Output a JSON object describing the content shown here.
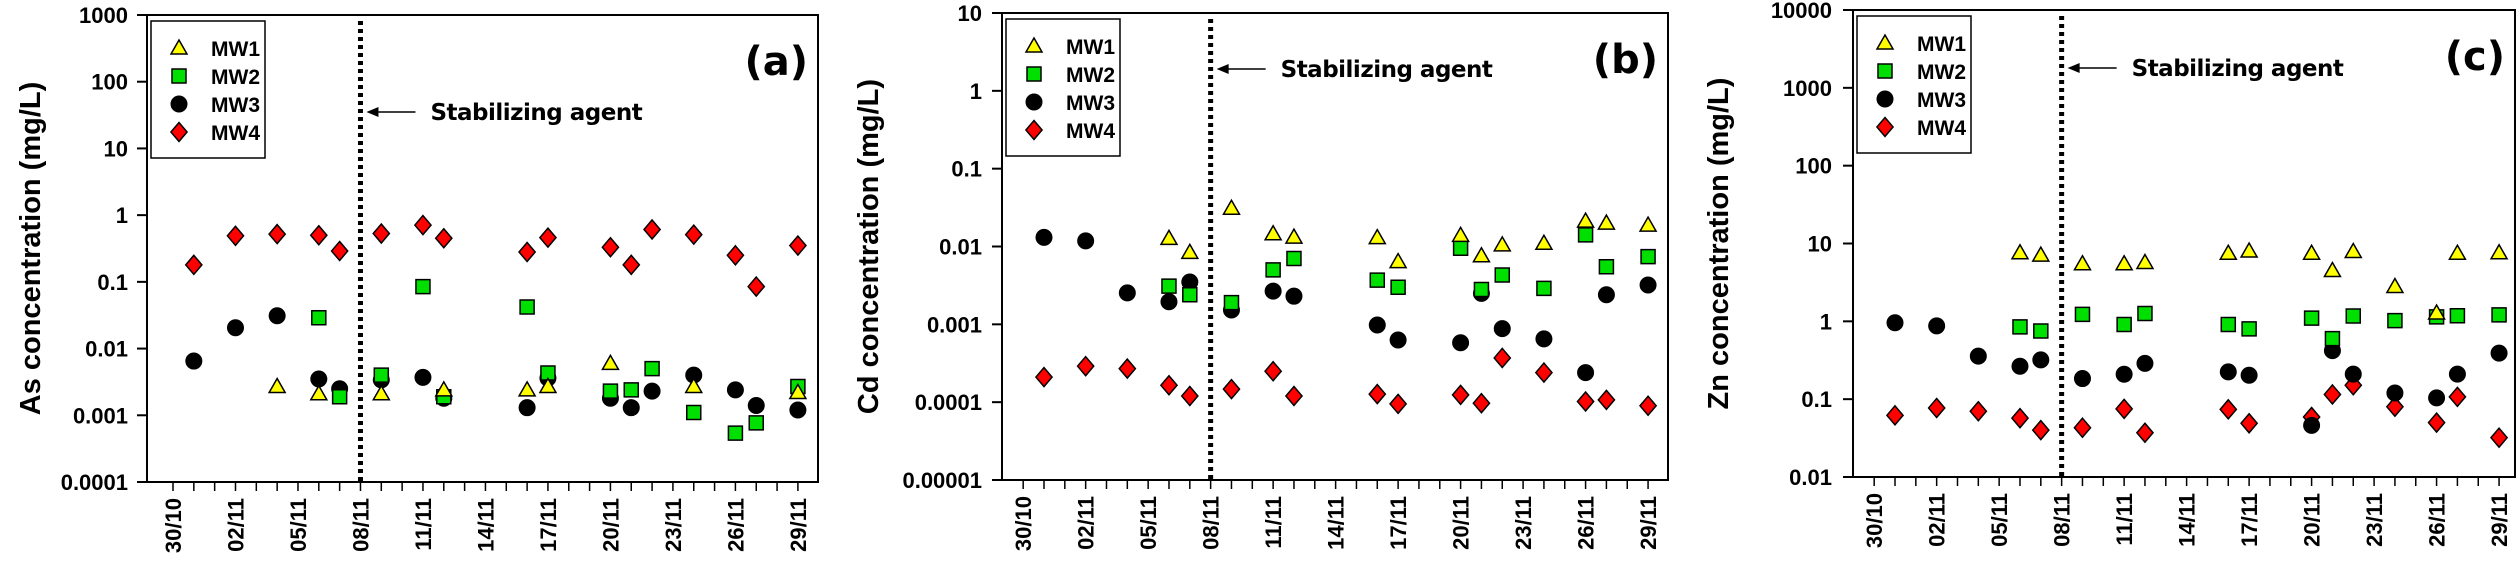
{
  "chart_data": [
    {
      "type": "scatter",
      "panel_label": "(a)",
      "ylabel": "As concentration (mg/L)",
      "xlabel": "",
      "yscale": "log",
      "ylim": [
        0.0001,
        1000
      ],
      "yticks": [
        "0.0001",
        "0.001",
        "0.01",
        "0.1",
        "1",
        "10",
        "100",
        "1000"
      ],
      "xticks": [
        "30/10",
        "02/11",
        "05/11",
        "08/11",
        "11/11",
        "14/11",
        "17/11",
        "20/11",
        "23/11",
        "26/11",
        "29/11"
      ],
      "annotation": "Stabilizing agent",
      "marker_line_date": "08/11",
      "legend_position": "top-left",
      "series": [
        {
          "name": "MW1",
          "x": [
            "04/11",
            "06/11",
            "09/11",
            "12/11",
            "16/11",
            "17/11",
            "20/11",
            "24/11",
            "29/11"
          ],
          "values": [
            0.0027,
            0.0021,
            0.0021,
            0.0024,
            0.0024,
            0.0027,
            0.006,
            0.0027,
            0.0022
          ]
        },
        {
          "name": "MW2",
          "x": [
            "06/11",
            "07/11",
            "09/11",
            "11/11",
            "12/11",
            "16/11",
            "17/11",
            "20/11",
            "21/11",
            "22/11",
            "24/11",
            "26/11",
            "27/11",
            "29/11"
          ],
          "values": [
            0.029,
            0.0019,
            0.004,
            0.085,
            0.0019,
            0.042,
            0.0043,
            0.0023,
            0.0024,
            0.005,
            0.0011,
            0.00054,
            0.00077,
            0.0027
          ]
        },
        {
          "name": "MW3",
          "x": [
            "31/10",
            "02/11",
            "04/11",
            "06/11",
            "07/11",
            "09/11",
            "11/11",
            "12/11",
            "16/11",
            "17/11",
            "20/11",
            "21/11",
            "22/11",
            "24/11",
            "26/11",
            "27/11",
            "29/11"
          ],
          "values": [
            0.0065,
            0.0205,
            0.031,
            0.0035,
            0.0025,
            0.0034,
            0.0037,
            0.0018,
            0.0013,
            0.0036,
            0.0018,
            0.0013,
            0.0023,
            0.004,
            0.0024,
            0.0014,
            0.0012
          ]
        },
        {
          "name": "MW4",
          "x": [
            "31/10",
            "02/11",
            "04/11",
            "06/11",
            "07/11",
            "09/11",
            "11/11",
            "12/11",
            "16/11",
            "17/11",
            "20/11",
            "21/11",
            "22/11",
            "24/11",
            "26/11",
            "27/11",
            "29/11"
          ],
          "values": [
            0.18,
            0.49,
            0.52,
            0.5,
            0.29,
            0.53,
            0.71,
            0.45,
            0.28,
            0.46,
            0.33,
            0.18,
            0.61,
            0.51,
            0.25,
            0.085,
            0.35
          ]
        }
      ]
    },
    {
      "type": "scatter",
      "panel_label": "(b)",
      "ylabel": "Cd concentration (mg/L)",
      "xlabel": "",
      "yscale": "log",
      "ylim": [
        1e-05,
        10
      ],
      "yticks": [
        "0.00001",
        "0.0001",
        "0.001",
        "0.01",
        "0.1",
        "1",
        "10"
      ],
      "xticks": [
        "30/10",
        "02/11",
        "05/11",
        "08/11",
        "11/11",
        "14/11",
        "17/11",
        "20/11",
        "23/11",
        "26/11",
        "29/11"
      ],
      "annotation": "Stabilizing agent",
      "marker_line_date": "08/11",
      "legend_position": "top-left",
      "series": [
        {
          "name": "MW1",
          "x": [
            "06/11",
            "07/11",
            "09/11",
            "11/11",
            "12/11",
            "16/11",
            "17/11",
            "20/11",
            "21/11",
            "22/11",
            "24/11",
            "26/11",
            "27/11",
            "29/11"
          ],
          "values": [
            0.0127,
            0.0084,
            0.031,
            0.0146,
            0.0132,
            0.013,
            0.0064,
            0.0139,
            0.0076,
            0.0105,
            0.011,
            0.0212,
            0.02,
            0.0188
          ]
        },
        {
          "name": "MW2",
          "x": [
            "06/11",
            "07/11",
            "09/11",
            "11/11",
            "12/11",
            "16/11",
            "17/11",
            "20/11",
            "21/11",
            "22/11",
            "24/11",
            "26/11",
            "27/11",
            "29/11"
          ],
          "values": [
            0.0031,
            0.0024,
            0.0019,
            0.005,
            0.007,
            0.0037,
            0.003,
            0.0095,
            0.0028,
            0.0043,
            0.0029,
            0.0141,
            0.0055,
            0.0074
          ]
        },
        {
          "name": "MW3",
          "x": [
            "31/10",
            "02/11",
            "04/11",
            "06/11",
            "07/11",
            "09/11",
            "11/11",
            "12/11",
            "16/11",
            "17/11",
            "20/11",
            "21/11",
            "22/11",
            "24/11",
            "26/11",
            "27/11",
            "29/11"
          ],
          "values": [
            0.0131,
            0.0118,
            0.00254,
            0.00195,
            0.0035,
            0.00153,
            0.00267,
            0.0023,
            0.00098,
            0.00063,
            0.00058,
            0.0025,
            0.00088,
            0.00065,
            0.00024,
            0.0024,
            0.0032
          ]
        },
        {
          "name": "MW4",
          "x": [
            "31/10",
            "02/11",
            "04/11",
            "06/11",
            "07/11",
            "09/11",
            "11/11",
            "12/11",
            "16/11",
            "17/11",
            "20/11",
            "21/11",
            "22/11",
            "24/11",
            "26/11",
            "27/11",
            "29/11"
          ],
          "values": [
            0.00021,
            0.00029,
            0.00027,
            0.000165,
            0.00012,
            0.000147,
            0.00025,
            0.00012,
            0.000127,
            9.5e-05,
            0.000124,
            9.7e-05,
            0.00037,
            0.00024,
            0.000102,
            0.000107,
            9e-05
          ]
        }
      ]
    },
    {
      "type": "scatter",
      "panel_label": "(c)",
      "ylabel": "Zn concentration (mg/L)",
      "xlabel": "",
      "yscale": "log",
      "ylim": [
        0.01,
        10000
      ],
      "yticks": [
        "0.01",
        "0.1",
        "1",
        "10",
        "100",
        "1000",
        "10000"
      ],
      "xticks": [
        "30/10",
        "02/11",
        "05/11",
        "08/11",
        "11/11",
        "14/11",
        "17/11",
        "20/11",
        "23/11",
        "26/11",
        "29/11"
      ],
      "annotation": "Stabilizing agent",
      "marker_line_date": "08/11",
      "legend_position": "top-left",
      "series": [
        {
          "name": "MW1",
          "x": [
            "06/11",
            "07/11",
            "09/11",
            "11/11",
            "12/11",
            "16/11",
            "17/11",
            "20/11",
            "21/11",
            "22/11",
            "24/11",
            "26/11",
            "27/11",
            "29/11"
          ],
          "values": [
            7.6,
            7.1,
            5.5,
            5.5,
            5.7,
            7.5,
            8.0,
            7.5,
            4.5,
            7.9,
            2.8,
            1.28,
            7.5,
            7.6
          ]
        },
        {
          "name": "MW2",
          "x": [
            "06/11",
            "07/11",
            "09/11",
            "11/11",
            "12/11",
            "16/11",
            "17/11",
            "20/11",
            "21/11",
            "22/11",
            "24/11",
            "26/11",
            "27/11",
            "29/11"
          ],
          "values": [
            0.85,
            0.75,
            1.23,
            0.91,
            1.26,
            0.91,
            0.8,
            1.1,
            0.6,
            1.17,
            1.02,
            1.14,
            1.18,
            1.21
          ]
        },
        {
          "name": "MW3",
          "x": [
            "31/10",
            "02/11",
            "04/11",
            "06/11",
            "07/11",
            "09/11",
            "11/11",
            "12/11",
            "16/11",
            "17/11",
            "20/11",
            "21/11",
            "22/11",
            "24/11",
            "26/11",
            "27/11",
            "29/11"
          ],
          "values": [
            0.96,
            0.875,
            0.357,
            0.265,
            0.32,
            0.184,
            0.209,
            0.288,
            0.224,
            0.203,
            0.046,
            0.42,
            0.21,
            0.12,
            0.104,
            0.21,
            0.39
          ]
        },
        {
          "name": "MW4",
          "x": [
            "31/10",
            "02/11",
            "04/11",
            "06/11",
            "07/11",
            "09/11",
            "11/11",
            "12/11",
            "16/11",
            "17/11",
            "20/11",
            "21/11",
            "22/11",
            "24/11",
            "26/11",
            "27/11",
            "29/11"
          ],
          "values": [
            0.062,
            0.077,
            0.07,
            0.057,
            0.04,
            0.043,
            0.075,
            0.037,
            0.074,
            0.049,
            0.059,
            0.115,
            0.151,
            0.08,
            0.05,
            0.107,
            0.032
          ]
        }
      ]
    }
  ],
  "series_styles": {
    "MW1": {
      "marker": "triangle",
      "color": "#FFFF00"
    },
    "MW2": {
      "marker": "square",
      "color": "#00E000"
    },
    "MW3": {
      "marker": "circle",
      "color": "#000000"
    },
    "MW4": {
      "marker": "diamond",
      "color": "#FF0000"
    }
  },
  "date_order": [
    "30/10",
    "31/10",
    "01/11",
    "02/11",
    "03/11",
    "04/11",
    "05/11",
    "06/11",
    "07/11",
    "08/11",
    "09/11",
    "10/11",
    "11/11",
    "12/11",
    "13/11",
    "14/11",
    "15/11",
    "16/11",
    "17/11",
    "18/11",
    "19/11",
    "20/11",
    "21/11",
    "22/11",
    "23/11",
    "24/11",
    "25/11",
    "26/11",
    "27/11",
    "28/11",
    "29/11"
  ]
}
